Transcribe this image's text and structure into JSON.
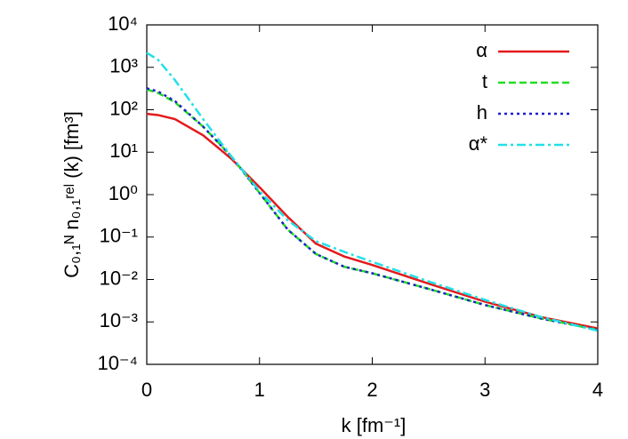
{
  "chart_data": {
    "type": "line",
    "yscale": "log",
    "xlabel": "k [fm⁻¹]",
    "ylabel": "C₀,₁ᴺ n₀,₁ʳᵉˡ (k) [fm³]",
    "x": [
      0,
      0.1,
      0.25,
      0.5,
      0.75,
      1,
      1.25,
      1.5,
      1.75,
      2,
      2.5,
      3,
      3.5,
      4
    ],
    "series": [
      {
        "name": "α",
        "color": "#e41a1c",
        "dash": "solid",
        "values": [
          80,
          75,
          60,
          25,
          7,
          1.5,
          0.3,
          0.07,
          0.035,
          0.022,
          0.008,
          0.003,
          0.0013,
          0.0007
        ]
      },
      {
        "name": "t",
        "color": "#22dd22",
        "dash": "dashed",
        "values": [
          300,
          250,
          150,
          40,
          8,
          1.1,
          0.15,
          0.04,
          0.02,
          0.014,
          0.006,
          0.0025,
          0.0012,
          0.00065
        ]
      },
      {
        "name": "h",
        "color": "#1f1fcc",
        "dash": "dotted",
        "values": [
          320,
          270,
          160,
          40,
          8,
          1.1,
          0.15,
          0.04,
          0.02,
          0.014,
          0.006,
          0.0025,
          0.0012,
          0.00065
        ]
      },
      {
        "name": "α*",
        "color": "#22e0e8",
        "dash": "dashdot",
        "values": [
          2200,
          1500,
          500,
          60,
          8,
          1.2,
          0.25,
          0.08,
          0.045,
          0.026,
          0.009,
          0.0033,
          0.0013,
          0.00062
        ]
      }
    ],
    "xlim": [
      0,
      4
    ],
    "xticks": [
      0,
      1,
      2,
      3,
      4
    ],
    "ylim": [
      0.0001,
      10000
    ],
    "yticks": [
      {
        "value": 0.0001,
        "label": "10⁻⁴"
      },
      {
        "value": 0.001,
        "label": "10⁻³"
      },
      {
        "value": 0.01,
        "label": "10⁻²"
      },
      {
        "value": 0.1,
        "label": "10⁻¹"
      },
      {
        "value": 1,
        "label": "10⁰"
      },
      {
        "value": 10,
        "label": "10¹"
      },
      {
        "value": 100,
        "label": "10²"
      },
      {
        "value": 1000,
        "label": "10³"
      },
      {
        "value": 10000,
        "label": "10⁴"
      }
    ],
    "legend": "top-right"
  }
}
